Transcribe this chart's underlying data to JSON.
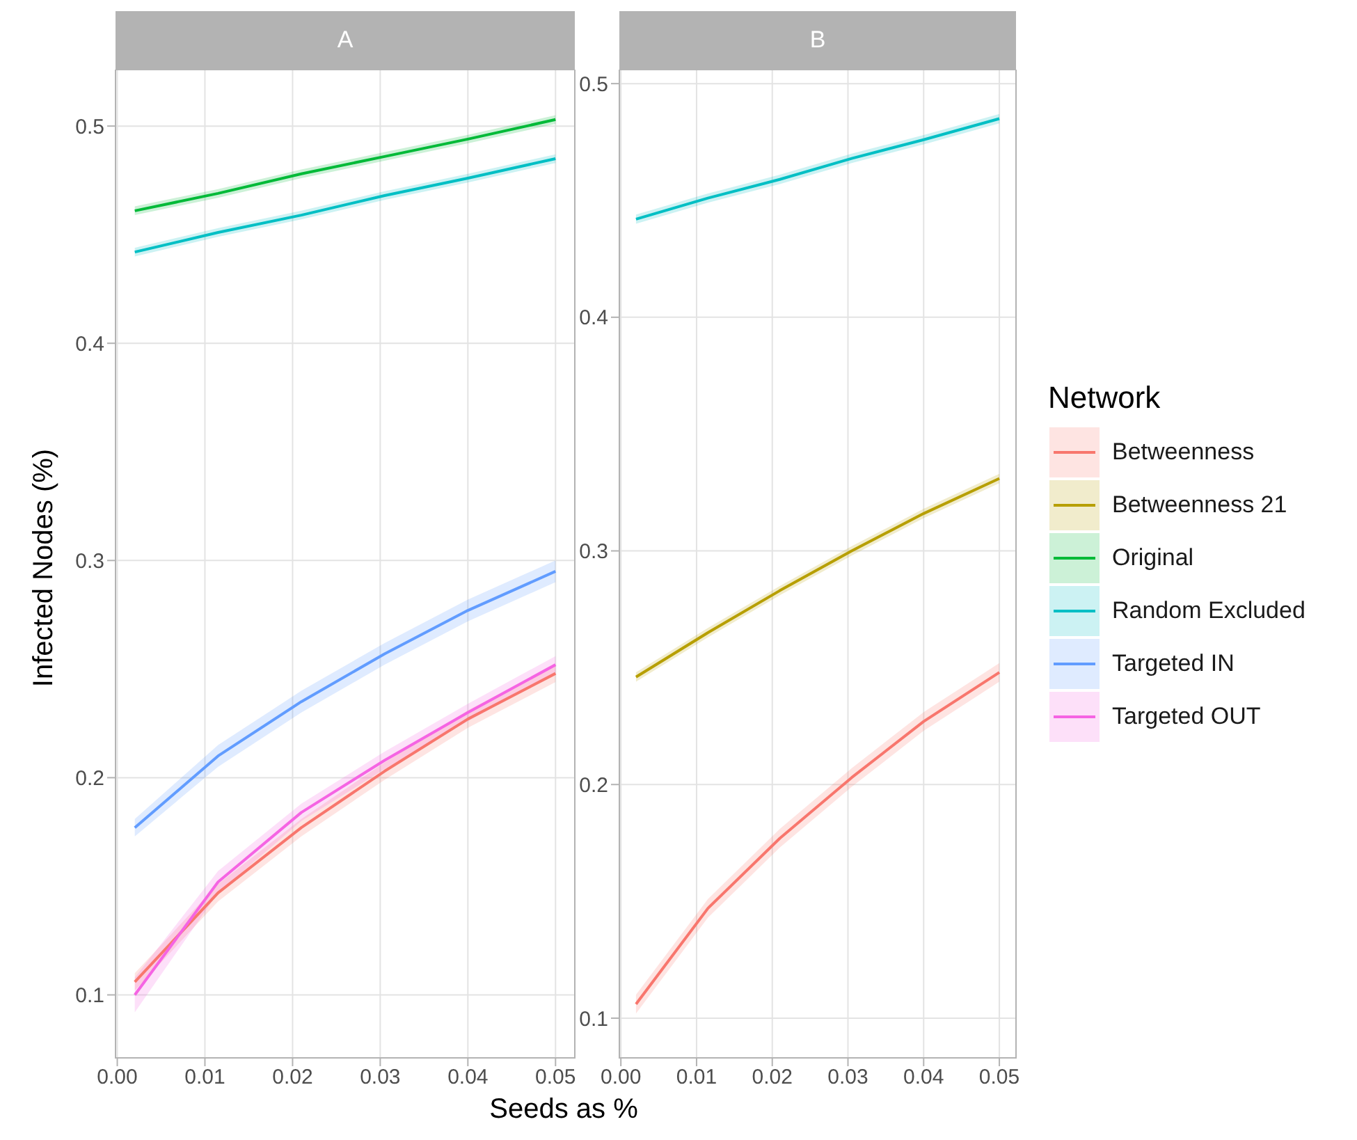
{
  "chart_data": [
    {
      "type": "line",
      "title": "A",
      "xlabel": "Seeds as %",
      "ylabel": "Infected Nodes (%)",
      "legend": "right",
      "legend_title": "Network",
      "grid": true,
      "x": [
        0.002,
        0.0115,
        0.021,
        0.0305,
        0.04,
        0.05
      ],
      "xlim": [
        -0.0002,
        0.0522
      ],
      "xticks": [
        {
          "value": 0,
          "label": "0.00"
        },
        0.01,
        0.02,
        0.03,
        0.04,
        0.05
      ],
      "ylim": [
        0.071,
        0.526
      ],
      "yticks": [
        0.1,
        0.2,
        0.3,
        0.4,
        0.5
      ],
      "series": [
        {
          "name": "Betweenness",
          "color": "#f8766d",
          "values": [
            0.106,
            0.147,
            0.177,
            0.203,
            0.227,
            0.248
          ],
          "lower": [
            0.102,
            0.143,
            0.173,
            0.199,
            0.223,
            0.244
          ],
          "upper": [
            0.11,
            0.151,
            0.181,
            0.207,
            0.231,
            0.252
          ]
        },
        {
          "name": "Betweenness 21",
          "color": "#b79f00",
          "values": [
            null,
            null,
            null,
            null,
            null,
            null
          ]
        },
        {
          "name": "Original",
          "color": "#00ba38",
          "values": [
            0.461,
            0.469,
            0.478,
            0.486,
            0.494,
            0.503
          ],
          "lower": [
            0.459,
            0.467,
            0.476,
            0.484,
            0.492,
            0.501
          ],
          "upper": [
            0.463,
            0.471,
            0.48,
            0.488,
            0.496,
            0.505
          ]
        },
        {
          "name": "Random Excluded",
          "color": "#00bfc4",
          "values": [
            0.442,
            0.451,
            0.459,
            0.468,
            0.476,
            0.485
          ],
          "lower": [
            0.44,
            0.449,
            0.457,
            0.466,
            0.474,
            0.483
          ],
          "upper": [
            0.444,
            0.453,
            0.461,
            0.47,
            0.478,
            0.487
          ]
        },
        {
          "name": "Targeted IN",
          "color": "#619cff",
          "values": [
            0.177,
            0.21,
            0.235,
            0.257,
            0.277,
            0.295
          ],
          "lower": [
            0.173,
            0.205,
            0.23,
            0.252,
            0.272,
            0.29
          ],
          "upper": [
            0.181,
            0.215,
            0.24,
            0.262,
            0.282,
            0.3
          ]
        },
        {
          "name": "Targeted OUT",
          "color": "#f564e3",
          "values": [
            0.1,
            0.152,
            0.184,
            0.208,
            0.23,
            0.252
          ],
          "lower": [
            0.092,
            0.147,
            0.18,
            0.204,
            0.226,
            0.248
          ],
          "upper": [
            0.108,
            0.157,
            0.188,
            0.212,
            0.234,
            0.256
          ]
        }
      ]
    },
    {
      "type": "line",
      "title": "B",
      "grid": true,
      "x": [
        0.002,
        0.0115,
        0.021,
        0.0305,
        0.04,
        0.05
      ],
      "xlim": [
        -0.0002,
        0.0522
      ],
      "xticks": [
        {
          "value": 0,
          "label": "0.00"
        },
        0.01,
        0.02,
        0.03,
        0.04,
        0.05
      ],
      "ylim": [
        0.083,
        0.506
      ],
      "yticks": [
        0.1,
        0.2,
        0.3,
        0.4,
        0.5
      ],
      "series": [
        {
          "color": "#f8766d",
          "values": [
            0.106,
            0.147,
            0.177,
            0.203,
            0.227,
            0.248
          ],
          "lower": [
            0.102,
            0.143,
            0.173,
            0.199,
            0.223,
            0.244
          ],
          "upper": [
            0.11,
            0.151,
            0.181,
            0.207,
            0.231,
            0.252
          ]
        },
        {
          "color": "#b79f00",
          "values": [
            0.246,
            0.265,
            0.283,
            0.3,
            0.316,
            0.331
          ],
          "lower": [
            0.244,
            0.263,
            0.281,
            0.298,
            0.314,
            0.329
          ],
          "upper": [
            0.248,
            0.267,
            0.285,
            0.302,
            0.318,
            0.333
          ]
        },
        {
          "color": "#00bfc4",
          "values": [
            0.442,
            0.451,
            0.459,
            0.468,
            0.476,
            0.485
          ],
          "lower": [
            0.44,
            0.449,
            0.457,
            0.466,
            0.474,
            0.483
          ],
          "upper": [
            0.444,
            0.453,
            0.461,
            0.47,
            0.478,
            0.487
          ]
        }
      ]
    }
  ]
}
